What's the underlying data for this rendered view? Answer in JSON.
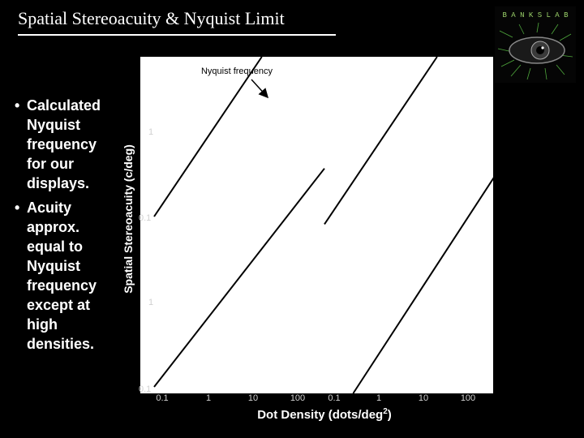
{
  "slide": {
    "title": "Spatial Stereoacuity & Nyquist Limit",
    "bullets": [
      "Calculated Nyquist frequency for our displays.",
      "Acuity approx. equal to Nyquist frequency except at high densities."
    ],
    "bullet_glyph": "•"
  },
  "logo": {
    "text": "B A N K S  L A B",
    "icon": "eye-logo-icon"
  },
  "chart_data": {
    "type": "line",
    "annotation": "Nyquist frequency",
    "ylabel": "Spatial Stereoacuity (c/deg)",
    "xlabel_main": "Dot Density (dots/deg",
    "xlabel_sup": "2",
    "xlabel_end": ")",
    "xscale": "log",
    "yscale": "log",
    "xlim": [
      0.1,
      100
    ],
    "ylim_top": [
      0.1,
      1
    ],
    "ylim_bottom": [
      0.1,
      1
    ],
    "x_ticks": [
      "0.1",
      "1",
      "10",
      "100"
    ],
    "y_ticks_top": [
      "1",
      "0.1"
    ],
    "y_ticks_bottom": [
      "1",
      "0.1"
    ],
    "panels": [
      {
        "row": 0,
        "col": 0,
        "series": [
          {
            "x": [
              0.1,
              100
            ],
            "y": [
              0.1,
              3.2
            ]
          }
        ]
      },
      {
        "row": 0,
        "col": 1,
        "series": [
          {
            "x": [
              0.1,
              100
            ],
            "y": [
              0.09,
              2.9
            ]
          }
        ]
      },
      {
        "row": 1,
        "col": 0,
        "series": [
          {
            "x": [
              0.1,
              100
            ],
            "y": [
              0.1,
              2.0
            ]
          }
        ]
      },
      {
        "row": 1,
        "col": 1,
        "series": [
          {
            "x": [
              0.1,
              100
            ],
            "y": [
              0.05,
              1.8
            ]
          }
        ]
      }
    ],
    "grid": false,
    "colors": {
      "plot_bg": "#ffffff",
      "line": "#000000",
      "tick_text": "#d0d0d0"
    }
  }
}
